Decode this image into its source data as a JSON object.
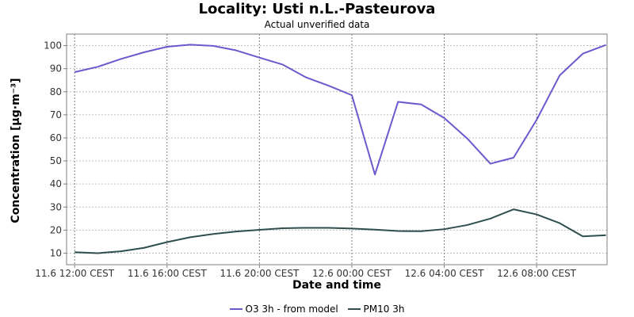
{
  "chart_data": {
    "type": "line",
    "title": "Locality: Usti n.L.-Pasteurova",
    "subtitle": "Actual unverified data",
    "xlabel": "Date and time",
    "ylabel": "Concentration [µg·m⁻³]",
    "ylim": [
      5,
      105
    ],
    "yticks": [
      10,
      20,
      30,
      40,
      50,
      60,
      70,
      80,
      90,
      100
    ],
    "xlim": [
      -0.35,
      23.05
    ],
    "x_tick_positions": [
      0,
      4,
      8,
      12,
      16,
      20
    ],
    "x_tick_labels": [
      "11.6 12:00 CEST",
      "11.6 16:00 CEST",
      "11.6 20:00 CEST",
      "12.6 00:00 CEST",
      "12.6 04:00 CEST",
      "12.6 08:00 CEST"
    ],
    "x": [
      0,
      1,
      2,
      3,
      4,
      5,
      6,
      7,
      8,
      9,
      10,
      11,
      12,
      13,
      14,
      15,
      16,
      17,
      18,
      19,
      20,
      21,
      22,
      23
    ],
    "series": [
      {
        "name": "O3 3h - from model",
        "color": "#6a5acd",
        "values": [
          88.5,
          90.8,
          94.2,
          97.1,
          99.5,
          100.4,
          99.9,
          97.9,
          94.8,
          91.8,
          86.3,
          82.6,
          78.5,
          44.1,
          75.6,
          74.5,
          68.6,
          59.7,
          48.8,
          51.4,
          67.8,
          87.1,
          96.5,
          100.3
        ]
      },
      {
        "name": "PM10 3h",
        "color": "#2f4f4f",
        "values": [
          10.4,
          10.0,
          10.8,
          12.3,
          14.8,
          16.9,
          18.3,
          19.4,
          20.1,
          20.8,
          21.0,
          21.0,
          20.7,
          20.2,
          19.6,
          19.5,
          20.4,
          22.2,
          25.0,
          29.0,
          26.8,
          23.0,
          17.3,
          17.8
        ]
      }
    ],
    "grid": true,
    "legend_position": "bottom-center"
  }
}
